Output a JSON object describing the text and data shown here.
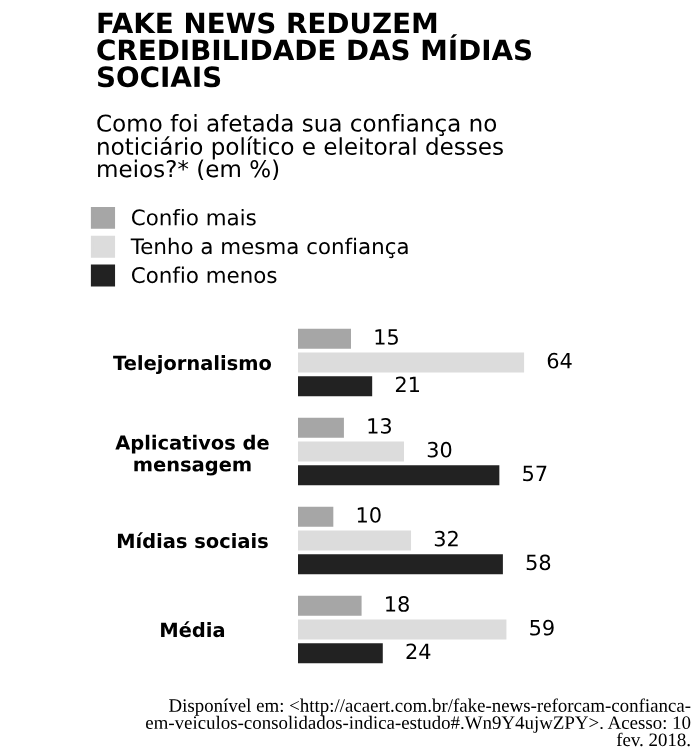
{
  "chart_data": {
    "type": "bar",
    "orientation": "horizontal",
    "title": "FAKE NEWS REDUZEM\nCREDIBILIDADE DAS MÍDIAS\nSOCIAIS",
    "subtitle": "Como foi afetada sua confiança no\nnoticiário político e eleitoral desses\nmeios?* (em %)",
    "categories": [
      "Telejornalismo",
      "Aplicativos de\nmensagem",
      "Mídias sociais",
      "Média"
    ],
    "series": [
      {
        "name": "Confio mais",
        "color": "#a6a6a6",
        "values": [
          15,
          13,
          10,
          18
        ]
      },
      {
        "name": "Tenho a mesma confiança",
        "color": "#dcdcdc",
        "values": [
          64,
          30,
          32,
          59
        ]
      },
      {
        "name": "Confio menos",
        "color": "#222222",
        "values": [
          21,
          57,
          58,
          24
        ]
      }
    ],
    "data_labels": true,
    "legend": "top left",
    "annotations": [
      "Disponível em: <http://acaert.com.br/fake-news-reforcam-confianca-\nem-veiculos-consolidados-indica-estudo#.Wn9Y4ujwZPY>. Acesso: 10\nfev. 2018."
    ]
  }
}
